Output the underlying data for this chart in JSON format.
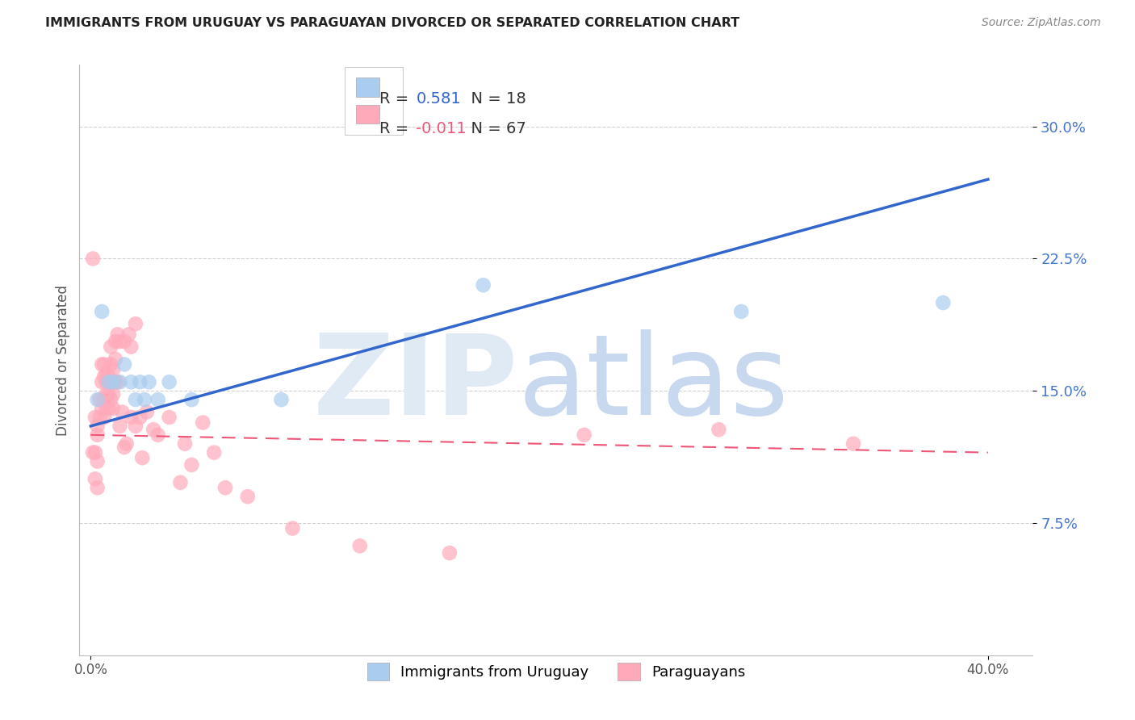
{
  "title": "IMMIGRANTS FROM URUGUAY VS PARAGUAYAN DIVORCED OR SEPARATED CORRELATION CHART",
  "source": "Source: ZipAtlas.com",
  "ylabel": "Divorced or Separated",
  "ytick_labels": [
    "7.5%",
    "15.0%",
    "22.5%",
    "30.0%"
  ],
  "ytick_values": [
    0.075,
    0.15,
    0.225,
    0.3
  ],
  "xtick_labels": [
    "0.0%",
    "40.0%"
  ],
  "xtick_values": [
    0.0,
    0.4
  ],
  "xlim": [
    -0.005,
    0.42
  ],
  "ylim": [
    0.0,
    0.335
  ],
  "legend_line1_r": "R =  0.581",
  "legend_line1_n": "N = 18",
  "legend_line2_r": "R = -0.011",
  "legend_line2_n": "N = 67",
  "blue_scatter_color": "#AACCEE",
  "pink_scatter_color": "#FFAABB",
  "blue_line_color": "#3366CC",
  "pink_line_color": "#EE5577",
  "background_color": "#FFFFFF",
  "grid_color": "#CCCCCC",
  "title_color": "#222222",
  "source_color": "#888888",
  "ylabel_color": "#555555",
  "ytick_color": "#4477CC",
  "legend_border_color": "#CCCCCC",
  "legend1_r_color": "#3366CC",
  "legend2_r_color": "#EE5577",
  "legend_n_color": "#333333",
  "bottom_legend_label1": "Immigrants from Uruguay",
  "bottom_legend_label2": "Paraguayans",
  "uruguay_x": [
    0.003,
    0.005,
    0.008,
    0.01,
    0.013,
    0.015,
    0.018,
    0.02,
    0.022,
    0.024,
    0.026,
    0.03,
    0.035,
    0.045,
    0.085,
    0.175,
    0.29,
    0.38
  ],
  "uruguay_y": [
    0.145,
    0.195,
    0.155,
    0.155,
    0.155,
    0.165,
    0.155,
    0.145,
    0.155,
    0.145,
    0.155,
    0.145,
    0.155,
    0.145,
    0.145,
    0.21,
    0.195,
    0.2
  ],
  "paraguay_x": [
    0.001,
    0.001,
    0.002,
    0.002,
    0.002,
    0.003,
    0.003,
    0.003,
    0.003,
    0.004,
    0.004,
    0.005,
    0.005,
    0.005,
    0.006,
    0.006,
    0.006,
    0.006,
    0.007,
    0.007,
    0.007,
    0.007,
    0.008,
    0.008,
    0.008,
    0.009,
    0.009,
    0.009,
    0.009,
    0.01,
    0.01,
    0.01,
    0.011,
    0.011,
    0.011,
    0.012,
    0.012,
    0.013,
    0.013,
    0.014,
    0.015,
    0.015,
    0.016,
    0.017,
    0.018,
    0.018,
    0.02,
    0.02,
    0.022,
    0.023,
    0.025,
    0.028,
    0.03,
    0.035,
    0.04,
    0.042,
    0.045,
    0.05,
    0.055,
    0.06,
    0.07,
    0.09,
    0.12,
    0.16,
    0.22,
    0.28,
    0.34
  ],
  "paraguay_y": [
    0.225,
    0.115,
    0.135,
    0.115,
    0.1,
    0.13,
    0.125,
    0.11,
    0.095,
    0.145,
    0.135,
    0.165,
    0.155,
    0.14,
    0.165,
    0.158,
    0.145,
    0.135,
    0.16,
    0.155,
    0.148,
    0.14,
    0.158,
    0.148,
    0.14,
    0.175,
    0.165,
    0.155,
    0.145,
    0.162,
    0.148,
    0.14,
    0.178,
    0.168,
    0.155,
    0.182,
    0.155,
    0.178,
    0.13,
    0.138,
    0.178,
    0.118,
    0.12,
    0.182,
    0.135,
    0.175,
    0.188,
    0.13,
    0.135,
    0.112,
    0.138,
    0.128,
    0.125,
    0.135,
    0.098,
    0.12,
    0.108,
    0.132,
    0.115,
    0.095,
    0.09,
    0.072,
    0.062,
    0.058,
    0.125,
    0.128,
    0.12
  ]
}
